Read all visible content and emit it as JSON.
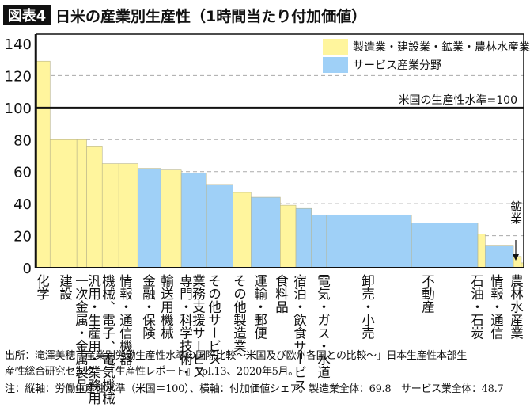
{
  "title": {
    "badge": "図表4",
    "text": "日米の産業別生産性（1時間当たり付加価値）"
  },
  "colors": {
    "manufacturing": "#fff59d",
    "service": "#9fd0f7",
    "badge_bg": "#111111"
  },
  "chart_data": {
    "type": "bar",
    "variable_width": true,
    "ylim": [
      0,
      140
    ],
    "yticks": [
      "0",
      "20",
      "40",
      "60",
      "80",
      "100",
      "120",
      "140"
    ],
    "grid": "dashed horizontal at 20, 40, 60, 80, 120",
    "reference_line": {
      "value": 100,
      "label": "米国の生産性水準=100"
    },
    "legend": {
      "placement": "top-right",
      "entries": [
        {
          "key": "manufacturing",
          "label": "製造業・建設業・鉱業・農林水産業"
        },
        {
          "key": "service",
          "label": "サービス産業分野"
        }
      ]
    },
    "annotation": {
      "text": "鉱業",
      "target": "鉱業"
    },
    "bars": [
      {
        "label": [
          "化学"
        ],
        "group": "manufacturing",
        "value": 129,
        "share": 2.8
      },
      {
        "label": [
          "建設"
        ],
        "group": "manufacturing",
        "value": 80,
        "share": 5.5
      },
      {
        "label": [
          "一次金属・金属製品"
        ],
        "group": "manufacturing",
        "value": 80,
        "share": 2.0
      },
      {
        "label": [
          "汎用・生産用・業務用"
        ],
        "group": "manufacturing",
        "value": 76,
        "share": 3.2
      },
      {
        "label": [
          "機械、電子、電気機械"
        ],
        "group": "manufacturing",
        "value": 65,
        "share": 3.4
      },
      {
        "label": [
          "情報・通信機器"
        ],
        "group": "manufacturing",
        "value": 65,
        "share": 3.9
      },
      {
        "label": [
          "金融・保険"
        ],
        "group": "service",
        "value": 62,
        "share": 4.7
      },
      {
        "label": [
          "輸送用機械"
        ],
        "group": "manufacturing",
        "value": 61,
        "share": 4.2
      },
      {
        "label": [
          "業務支援サービス",
          "専門・科学技術・"
        ],
        "group": "service",
        "value": 59,
        "share": 5.2
      },
      {
        "label": [
          "その他サービス"
        ],
        "group": "service",
        "value": 52,
        "share": 5.4
      },
      {
        "label": [
          "その他製造業"
        ],
        "group": "manufacturing",
        "value": 47,
        "share": 3.7
      },
      {
        "label": [
          "運輸・郵便"
        ],
        "group": "service",
        "value": 44,
        "share": 6.0
      },
      {
        "label": [
          "食料品"
        ],
        "group": "manufacturing",
        "value": 39,
        "share": 3.2
      },
      {
        "label": [
          "宿泊・飲食サービス"
        ],
        "group": "service",
        "value": 37,
        "share": 3.2
      },
      {
        "label": [
          "電気・ガス・水道"
        ],
        "group": "service",
        "value": 33,
        "share": 3.1
      },
      {
        "label": [
          "卸売・小売"
        ],
        "group": "service",
        "value": 33,
        "share": 17.4
      },
      {
        "label": [
          "不動産"
        ],
        "group": "service",
        "value": 28,
        "share": 13.6
      },
      {
        "label": [
          "石油・石炭"
        ],
        "group": "manufacturing",
        "value": 21,
        "share": 1.5
      },
      {
        "label": [
          "情報・通信"
        ],
        "group": "service",
        "value": 14,
        "share": 5.8
      },
      {
        "label": [],
        "name": "鉱業",
        "group": "manufacturing",
        "value": 7,
        "share": 1.6
      },
      {
        "label": [
          "農林水産業"
        ],
        "group": "manufacturing",
        "value": 3,
        "share": 0.5
      }
    ]
  },
  "notes": [
    "出所：滝澤美穂「産業別労働生産性水準の国際比較〜米国及び欧州各国との比較〜」日本生産性本部生",
    "産性総合研究センター『生産性レポート』Vol.13、2020年5月。",
    "注：縦軸：労働生産性水準（米国＝100）、横軸：付加価値シェア。製造業全体：69.8　サービス業全体：48.7"
  ]
}
